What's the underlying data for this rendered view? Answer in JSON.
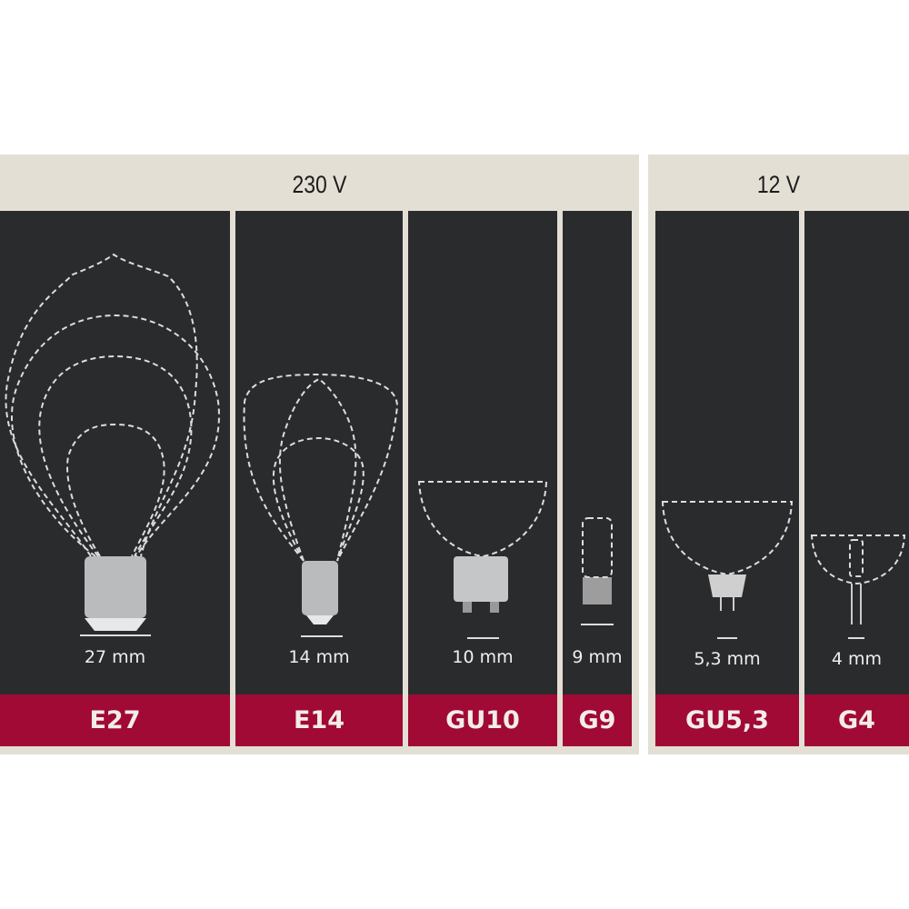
{
  "groups": [
    {
      "voltage": "230 V",
      "sockets": [
        {
          "name": "E27",
          "size": "27 mm"
        },
        {
          "name": "E14",
          "size": "14 mm"
        },
        {
          "name": "GU10",
          "size": "10 mm"
        },
        {
          "name": "G9",
          "size": "9 mm"
        }
      ]
    },
    {
      "voltage": "12 V",
      "sockets": [
        {
          "name": "GU5,3",
          "size": "5,3 mm"
        },
        {
          "name": "G4",
          "size": "4 mm"
        }
      ]
    }
  ],
  "colors": {
    "background_band": "#e4dfd5",
    "panel": "#2a2b2d",
    "label_bar": "#a00a35"
  }
}
